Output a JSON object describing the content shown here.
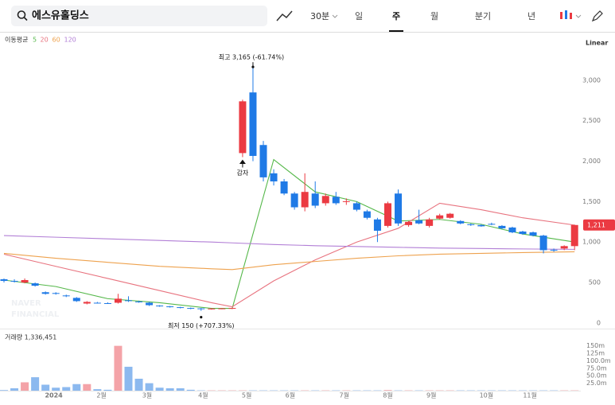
{
  "search": "에스유홀딩스",
  "toolbar": {
    "interval": "30분",
    "tabs": [
      "일",
      "주",
      "월",
      "분기",
      "년"
    ],
    "active": 1
  },
  "chart_data": {
    "type": "candlestick",
    "scale": "Linear",
    "ma_title": "이동평균",
    "watermark": [
      "NAVER",
      "FINANCIAL"
    ],
    "up_color": "#eb3a42",
    "down_color": "#1f7ae6",
    "ylim": [
      -70,
      3550
    ],
    "yticks": [
      0,
      500,
      {
        "value": 1000,
        "label": "1,000"
      },
      {
        "value": 1500,
        "label": "1,500"
      },
      {
        "value": 2000,
        "label": "2,000"
      },
      {
        "value": 2500,
        "label": "2,500"
      },
      {
        "value": 3000,
        "label": "3,000"
      }
    ],
    "xticks": [
      {
        "value": 4.8,
        "label": "2024"
      },
      {
        "value": 9.4,
        "label": "2월"
      },
      {
        "value": 13.8,
        "label": "3월"
      },
      {
        "value": 19.2,
        "label": "4월"
      },
      {
        "value": 23.4,
        "label": "5월"
      },
      {
        "value": 27.6,
        "label": "6월"
      },
      {
        "value": 32.8,
        "label": "7월"
      },
      {
        "value": 37,
        "label": "8월"
      },
      {
        "value": 41.2,
        "label": "9월"
      },
      {
        "value": 46.5,
        "label": "10월"
      },
      {
        "value": 50.7,
        "label": "11월"
      }
    ],
    "open": [
      540,
      520,
      500,
      490,
      380,
      370,
      340,
      310,
      240,
      250,
      245,
      250,
      280,
      265,
      250,
      215,
      205,
      195,
      185,
      180,
      175,
      178,
      180,
      2100,
      2850,
      2200,
      1850,
      1750,
      1600,
      1430,
      1600,
      1480,
      1560,
      1500,
      1480,
      1380,
      1280,
      1200,
      1600,
      1210,
      1270,
      1200,
      1290,
      1300,
      1260,
      1220,
      1210,
      1225,
      1200,
      1180,
      1130,
      1120,
      1080,
      905,
      920,
      950
    ],
    "high": [
      550,
      540,
      550,
      500,
      390,
      380,
      350,
      320,
      270,
      260,
      255,
      360,
      330,
      275,
      260,
      220,
      210,
      200,
      190,
      185,
      185,
      185,
      190,
      2760,
      3165,
      2250,
      1900,
      1780,
      1620,
      1850,
      1750,
      1600,
      1620,
      1540,
      1500,
      1400,
      1300,
      1500,
      1650,
      1260,
      1400,
      1300,
      1350,
      1360,
      1270,
      1230,
      1220,
      1240,
      1210,
      1190,
      1140,
      1130,
      1090,
      920,
      960,
      1215
    ],
    "low": [
      500,
      500,
      490,
      450,
      350,
      350,
      320,
      260,
      230,
      240,
      235,
      240,
      260,
      250,
      210,
      200,
      190,
      180,
      170,
      150,
      165,
      170,
      172,
      2050,
      2000,
      1750,
      1700,
      1580,
      1400,
      1380,
      1420,
      1450,
      1460,
      1460,
      1380,
      1280,
      1000,
      1180,
      1200,
      1190,
      1220,
      1180,
      1280,
      1290,
      1220,
      1200,
      1190,
      1210,
      1160,
      1110,
      1090,
      1070,
      860,
      880,
      900,
      900
    ],
    "close": [
      520,
      510,
      530,
      460,
      360,
      360,
      330,
      270,
      260,
      245,
      240,
      300,
      270,
      260,
      220,
      210,
      200,
      190,
      180,
      175,
      178,
      180,
      185,
      2740,
      2065,
      1800,
      1750,
      1600,
      1430,
      1620,
      1450,
      1570,
      1480,
      1505,
      1400,
      1300,
      1140,
      1480,
      1230,
      1250,
      1230,
      1280,
      1330,
      1350,
      1230,
      1210,
      1195,
      1220,
      1170,
      1120,
      1100,
      1080,
      900,
      900,
      950,
      1211
    ],
    "ma_x": [
      0,
      5,
      10,
      15,
      20,
      22,
      26,
      30,
      34,
      38,
      42,
      46,
      50,
      55
    ],
    "series": [
      {
        "name": "5",
        "color": "#55b84a",
        "values": [
          530,
          450,
          300,
          250,
          180,
          180,
          2020,
          1620,
          1500,
          1260,
          1280,
          1220,
          1100,
          1000
        ]
      },
      {
        "name": "20",
        "color": "#e8737f",
        "values": [
          850,
          700,
          550,
          400,
          250,
          200,
          520,
          780,
          1000,
          1170,
          1480,
          1400,
          1300,
          1210
        ]
      },
      {
        "name": "60",
        "color": "#eea24e",
        "values": [
          860,
          800,
          750,
          700,
          670,
          660,
          720,
          760,
          800,
          830,
          850,
          860,
          870,
          880
        ]
      },
      {
        "name": "120",
        "color": "#b27fd6",
        "values": [
          1080,
          1060,
          1040,
          1020,
          1000,
          990,
          970,
          955,
          945,
          935,
          925,
          920,
          915,
          910
        ]
      }
    ],
    "high_mark": {
      "index": 24,
      "label": "최고 3,165 (-61.74%)"
    },
    "low_mark": {
      "index": 19,
      "label": "최저 150 (+707.33%)"
    },
    "event_mark": {
      "index": 23,
      "label": "감자"
    },
    "last_price_label": "1,211",
    "volume": {
      "title": "거래량 1,336,451",
      "values": [
        2,
        8,
        28,
        45,
        20,
        10,
        12,
        22,
        22,
        5,
        3,
        150,
        80,
        40,
        25,
        10,
        8,
        8,
        3,
        1,
        1,
        1,
        1,
        1,
        1,
        1,
        1,
        1,
        1,
        1,
        1,
        1,
        1,
        1,
        1,
        1,
        1,
        2,
        1,
        1,
        1,
        1,
        1,
        1,
        1,
        1,
        1,
        1,
        1,
        1,
        1,
        1,
        1,
        1,
        1,
        1
      ],
      "ylim": [
        0,
        165
      ],
      "yticks": [
        {
          "value": 150,
          "label": "150m"
        },
        {
          "value": 125,
          "label": "125m"
        },
        {
          "value": 100,
          "label": "100.0m"
        },
        {
          "value": 75,
          "label": "75.0m"
        },
        {
          "value": 50,
          "label": "50.0m"
        },
        {
          "value": 25,
          "label": "25.0m"
        }
      ]
    }
  }
}
